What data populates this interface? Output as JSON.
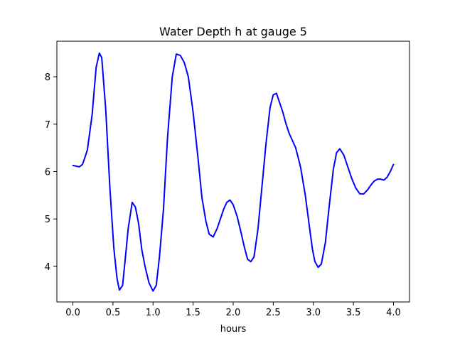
{
  "chart_data": {
    "type": "line",
    "title": "Water Depth h at gauge 5",
    "xlabel": "hours",
    "ylabel": "",
    "xlim": [
      -0.2,
      4.2
    ],
    "ylim": [
      3.25,
      8.75
    ],
    "xticks": [
      0.0,
      0.5,
      1.0,
      1.5,
      2.0,
      2.5,
      3.0,
      3.5,
      4.0
    ],
    "xtick_labels": [
      "0.0",
      "0.5",
      "1.0",
      "1.5",
      "2.0",
      "2.5",
      "3.0",
      "3.5",
      "4.0"
    ],
    "yticks": [
      4,
      5,
      6,
      7,
      8
    ],
    "ytick_labels": [
      "4",
      "5",
      "6",
      "7",
      "8"
    ],
    "grid": false,
    "series": [
      {
        "color": "#0000ff",
        "x": [
          0.0,
          0.05,
          0.08,
          0.12,
          0.18,
          0.24,
          0.29,
          0.33,
          0.36,
          0.41,
          0.46,
          0.51,
          0.55,
          0.58,
          0.62,
          0.65,
          0.69,
          0.74,
          0.78,
          0.82,
          0.86,
          0.9,
          0.95,
          1.0,
          1.04,
          1.08,
          1.13,
          1.18,
          1.24,
          1.29,
          1.34,
          1.39,
          1.44,
          1.5,
          1.56,
          1.61,
          1.66,
          1.7,
          1.75,
          1.8,
          1.84,
          1.88,
          1.92,
          1.96,
          2.0,
          2.05,
          2.1,
          2.14,
          2.18,
          2.22,
          2.26,
          2.31,
          2.36,
          2.41,
          2.46,
          2.5,
          2.54,
          2.57,
          2.62,
          2.66,
          2.7,
          2.74,
          2.78,
          2.84,
          2.9,
          2.95,
          2.99,
          3.02,
          3.06,
          3.1,
          3.15,
          3.2,
          3.25,
          3.29,
          3.33,
          3.38,
          3.43,
          3.48,
          3.53,
          3.58,
          3.63,
          3.68,
          3.72,
          3.76,
          3.8,
          3.84,
          3.88,
          3.92,
          3.96,
          4.0
        ],
        "y": [
          6.13,
          6.11,
          6.1,
          6.15,
          6.45,
          7.2,
          8.2,
          8.5,
          8.4,
          7.3,
          5.7,
          4.4,
          3.75,
          3.5,
          3.6,
          4.1,
          4.8,
          5.35,
          5.25,
          4.9,
          4.35,
          4.0,
          3.65,
          3.48,
          3.6,
          4.2,
          5.2,
          6.7,
          8.0,
          8.48,
          8.45,
          8.3,
          8.0,
          7.25,
          6.3,
          5.45,
          4.95,
          4.68,
          4.62,
          4.8,
          5.0,
          5.2,
          5.35,
          5.4,
          5.3,
          5.05,
          4.7,
          4.4,
          4.15,
          4.1,
          4.2,
          4.8,
          5.7,
          6.6,
          7.35,
          7.62,
          7.65,
          7.5,
          7.25,
          7.0,
          6.8,
          6.65,
          6.5,
          6.1,
          5.5,
          4.85,
          4.35,
          4.1,
          3.98,
          4.05,
          4.5,
          5.3,
          6.05,
          6.4,
          6.48,
          6.35,
          6.1,
          5.85,
          5.65,
          5.53,
          5.53,
          5.62,
          5.72,
          5.8,
          5.84,
          5.84,
          5.82,
          5.88,
          6.0,
          6.15
        ]
      }
    ]
  }
}
